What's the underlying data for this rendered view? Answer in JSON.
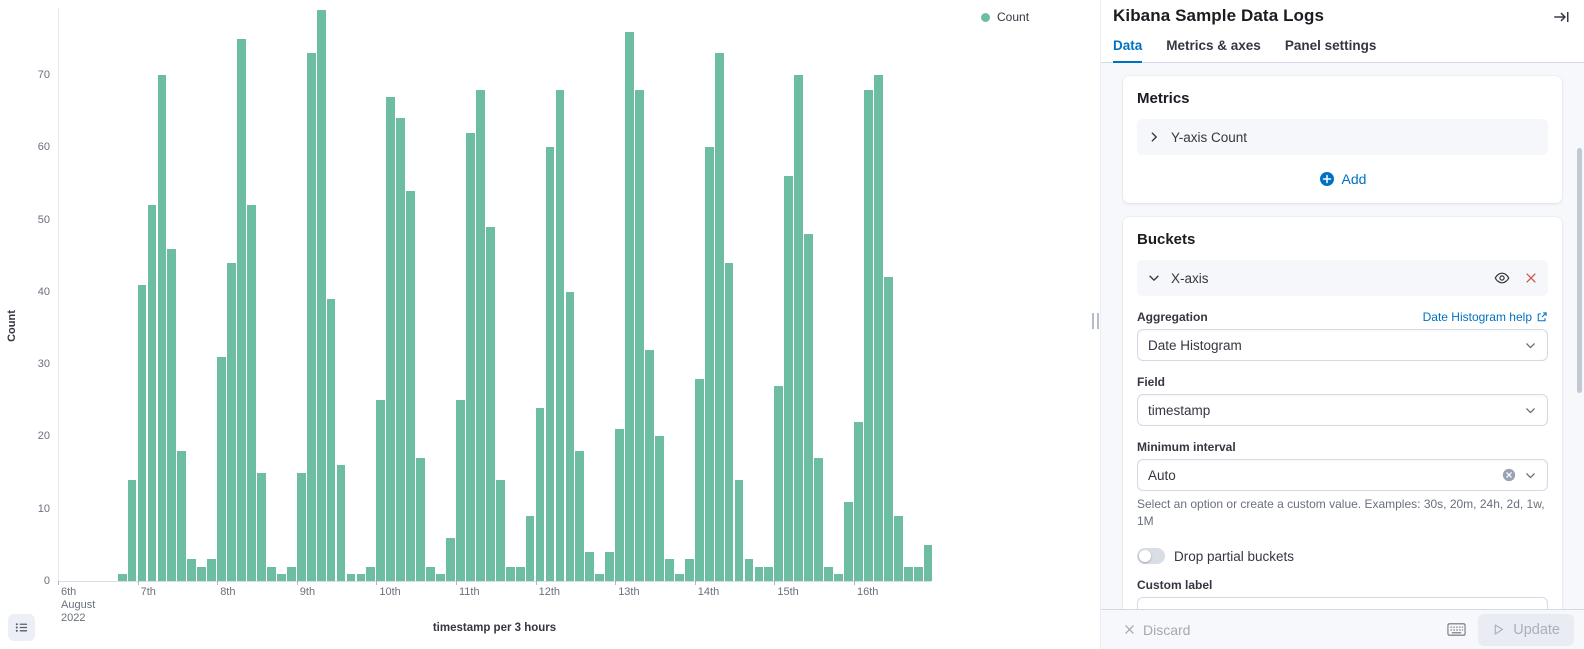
{
  "chart_data": {
    "type": "bar",
    "title": "Kibana Sample Data Logs",
    "series": [
      {
        "name": "Count",
        "color": "#6CBDA1"
      }
    ],
    "x_start": "2022-08-06 18:00",
    "bucket_interval_hours": 3,
    "values": [
      1,
      14,
      41,
      52,
      70,
      46,
      18,
      3,
      2,
      3,
      31,
      44,
      75,
      52,
      15,
      2,
      1,
      2,
      15,
      73,
      79,
      39,
      16,
      1,
      1,
      2,
      25,
      67,
      64,
      54,
      17,
      2,
      1,
      6,
      25,
      62,
      68,
      49,
      14,
      2,
      2,
      9,
      24,
      60,
      68,
      40,
      18,
      4,
      1,
      4,
      21,
      76,
      68,
      32,
      20,
      3,
      1,
      3,
      28,
      60,
      73,
      44,
      14,
      3,
      2,
      2,
      27,
      56,
      70,
      48,
      17,
      2,
      1,
      11,
      22,
      68,
      70,
      42,
      9,
      2,
      2,
      5
    ],
    "x_tick_labels": [
      "6th",
      "7th",
      "8th",
      "9th",
      "10th",
      "11th",
      "12th",
      "13th",
      "14th",
      "15th",
      "16th"
    ],
    "x_first_tick_sublabels": [
      "August",
      "2022"
    ],
    "xlabel": "timestamp per 3 hours",
    "ylabel": "Count",
    "y_ticks": [
      0,
      10,
      20,
      30,
      40,
      50,
      60,
      70
    ],
    "ylim": [
      0,
      80
    ],
    "grid": false,
    "legend": {
      "label": "Count",
      "position": "top-right"
    }
  },
  "panel": {
    "title": "Kibana Sample Data Logs",
    "tabs": [
      {
        "label": "Data",
        "selected": true
      },
      {
        "label": "Metrics & axes",
        "selected": false
      },
      {
        "label": "Panel settings",
        "selected": false
      }
    ],
    "metrics": {
      "heading": "Metrics",
      "row_label": "Y-axis Count",
      "add_label": "Add"
    },
    "buckets": {
      "heading": "Buckets",
      "row_label": "X-axis",
      "aggregation_label": "Aggregation",
      "aggregation_help_link": "Date Histogram help",
      "aggregation_value": "Date Histogram",
      "field_label": "Field",
      "field_value": "timestamp",
      "minimum_interval_label": "Minimum interval",
      "minimum_interval_value": "Auto",
      "minimum_interval_help": "Select an option or create a custom value. Examples: 30s, 20m, 24h, 2d, 1w, 1M",
      "drop_partial_label": "Drop partial buckets",
      "drop_partial_on": false,
      "custom_label_label": "Custom label",
      "custom_label_value": ""
    },
    "footer": {
      "discard_label": "Discard",
      "update_label": "Update"
    },
    "colors": {
      "accent_blue": "#0071C2",
      "danger_red": "#CE5745",
      "bar_green": "#6CBDA1"
    }
  }
}
